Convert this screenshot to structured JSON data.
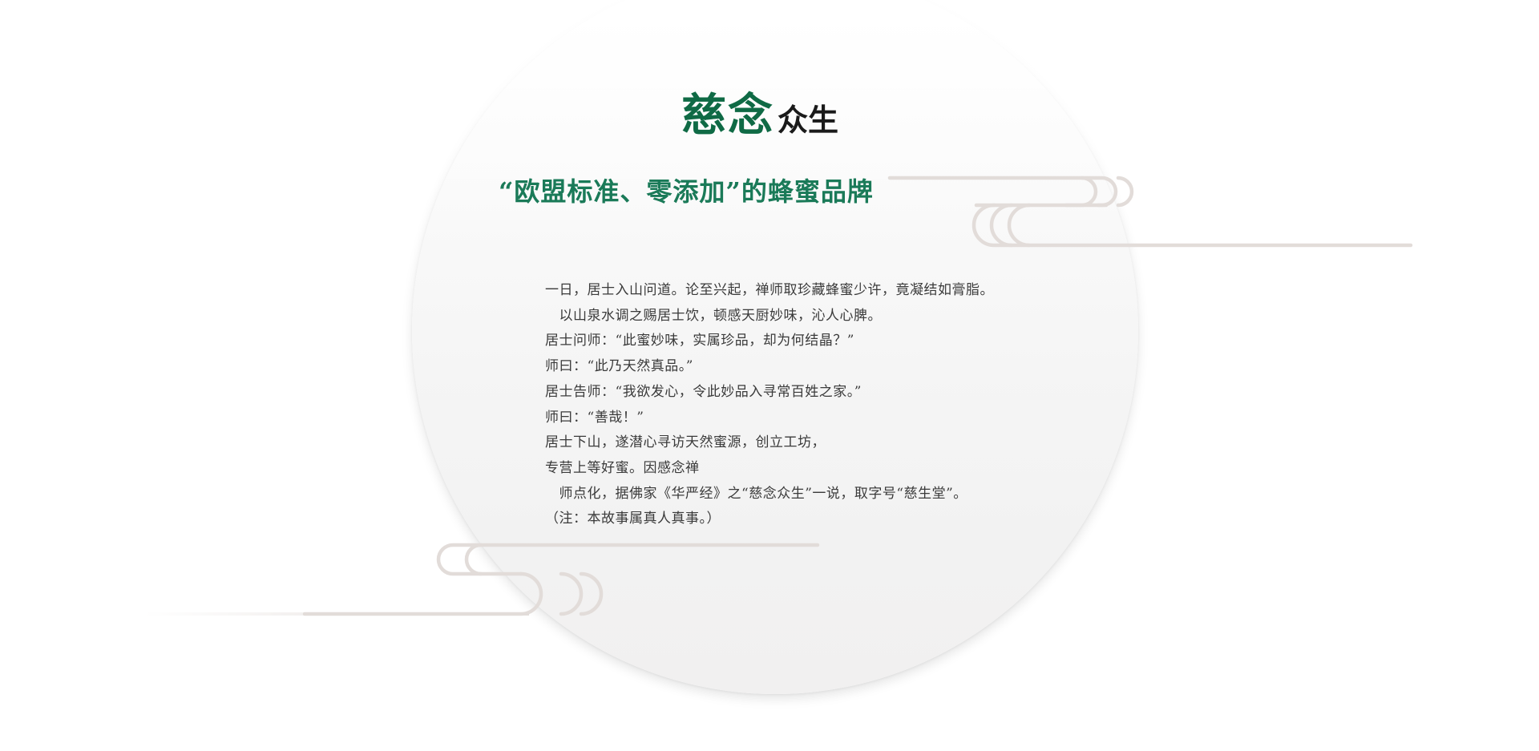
{
  "title": {
    "green_part": "慈念",
    "black_part": "众生"
  },
  "subtitle": "“欧盟标准、零添加”的蜂蜜品牌",
  "story": {
    "lines": [
      "一日，居士入山问道。论至兴起，禅师取珍藏蜂蜜少许，竟凝结如膏脂。",
      "　以山泉水调之赐居士饮，顿感天厨妙味，沁人心脾。",
      "居士问师：“此蜜妙味，实属珍品，却为何结晶？”",
      "师曰：“此乃天然真品。”",
      "居士告师：“我欲发心，令此妙品入寻常百姓之家。”",
      "师曰：“善哉！”",
      "居士下山，遂潜心寻访天然蜜源，创立工坊，",
      "专营上等好蜜。因感念禅",
      "　师点化，据佛家《华严经》之“慈念众生”一说，取字号“慈生堂”。",
      "（注：本故事属真人真事。）"
    ]
  },
  "colors": {
    "brand_green": "#0f6a45",
    "subtitle_green": "#1a7a58",
    "body_text": "#3a3a3a",
    "cloud_stroke": "#e2dcd9"
  },
  "icons": [
    "cloud-pattern-right-icon",
    "cloud-pattern-left-icon"
  ]
}
